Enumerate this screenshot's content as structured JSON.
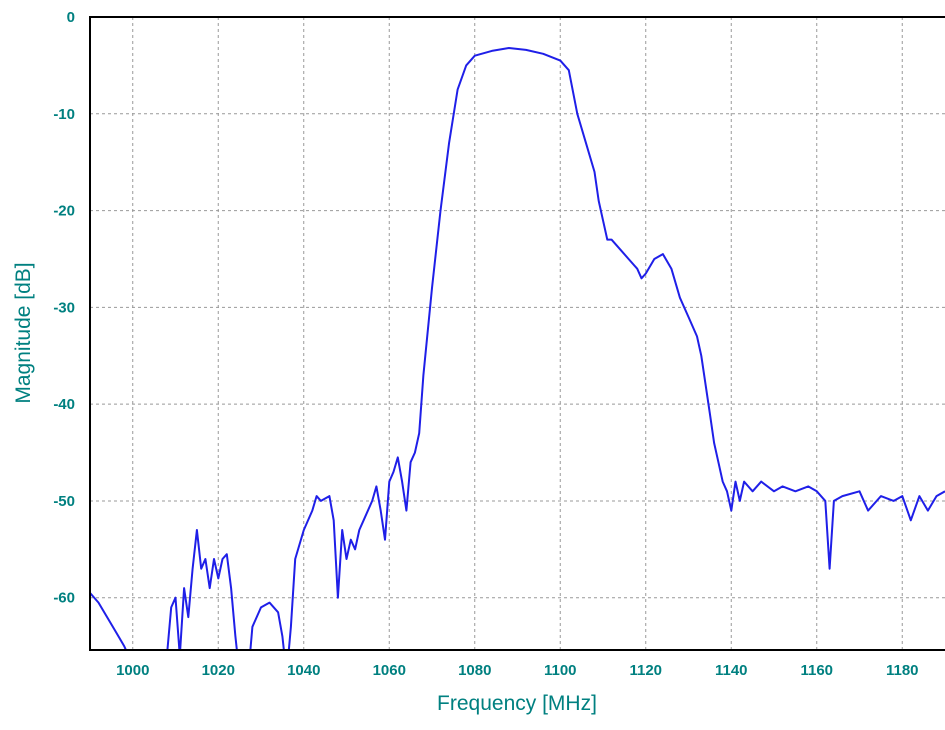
{
  "chart_data": {
    "type": "line",
    "xlabel": "Frequency [MHz]",
    "ylabel": "Magnitude [dB]",
    "xlim": [
      990,
      1190
    ],
    "ylim": [
      -65.4,
      0
    ],
    "xticks": [
      1000,
      1020,
      1040,
      1060,
      1080,
      1100,
      1120,
      1140,
      1160,
      1180
    ],
    "yticks": [
      0,
      -10,
      -20,
      -30,
      -40,
      -50,
      -60
    ],
    "grid": true,
    "series": [
      {
        "color": "#1f1fe8",
        "x": [
          990,
          992,
          994,
          996,
          998,
          1000,
          1004,
          1008,
          1009,
          1010,
          1011,
          1012,
          1013,
          1014,
          1015,
          1016,
          1017,
          1018,
          1019,
          1020,
          1021,
          1022,
          1023,
          1024,
          1025,
          1027,
          1028,
          1030,
          1032,
          1034,
          1035,
          1036,
          1037,
          1038,
          1040,
          1042,
          1043,
          1044,
          1046,
          1047,
          1048,
          1049,
          1050,
          1051,
          1052,
          1053,
          1054,
          1056,
          1057,
          1058,
          1059,
          1060,
          1061,
          1062,
          1063,
          1064,
          1065,
          1066,
          1067,
          1068,
          1070,
          1072,
          1074,
          1076,
          1078,
          1080,
          1084,
          1088,
          1092,
          1096,
          1100,
          1102,
          1104,
          1106,
          1108,
          1109,
          1110,
          1111,
          1112,
          1114,
          1116,
          1118,
          1119,
          1120,
          1122,
          1124,
          1126,
          1128,
          1130,
          1132,
          1133,
          1134,
          1135,
          1136,
          1137,
          1138,
          1139,
          1140,
          1141,
          1142,
          1143,
          1145,
          1147,
          1150,
          1152,
          1155,
          1158,
          1160,
          1162,
          1163,
          1164,
          1166,
          1170,
          1172,
          1175,
          1178,
          1180,
          1182,
          1184,
          1186,
          1188,
          1190
        ],
        "values": [
          -59.5,
          -60.5,
          -62,
          -63.5,
          -65,
          -67,
          -68,
          -66,
          -61,
          -60,
          -66,
          -59,
          -62,
          -57,
          -53,
          -57,
          -56,
          -59,
          -56,
          -58,
          -56,
          -55.5,
          -59,
          -64,
          -68,
          -68,
          -63,
          -61,
          -60.5,
          -61.5,
          -64,
          -68,
          -63,
          -56,
          -53,
          -51,
          -49.5,
          -50,
          -49.5,
          -52,
          -60,
          -53,
          -56,
          -54,
          -55,
          -53,
          -52,
          -50,
          -48.5,
          -51,
          -54,
          -48,
          -47,
          -45.5,
          -48,
          -51,
          -46,
          -45,
          -43,
          -37,
          -28,
          -20,
          -13,
          -7.5,
          -5,
          -4,
          -3.5,
          -3.2,
          -3.4,
          -3.8,
          -4.5,
          -5.5,
          -10,
          -13,
          -16,
          -19,
          -21,
          -23,
          -23,
          -24,
          -25,
          -26,
          -27,
          -26.5,
          -25,
          -24.5,
          -26,
          -29,
          -31,
          -33,
          -35,
          -38,
          -41,
          -44,
          -46,
          -48,
          -49,
          -51,
          -48,
          -50,
          -48,
          -49,
          -48,
          -49,
          -48.5,
          -49,
          -48.5,
          -49,
          -50,
          -57,
          -50,
          -49.5,
          -49,
          -51,
          -49.5,
          -50,
          -49.5,
          -52,
          -49.5,
          -51,
          -49.5,
          -49
        ]
      }
    ]
  }
}
